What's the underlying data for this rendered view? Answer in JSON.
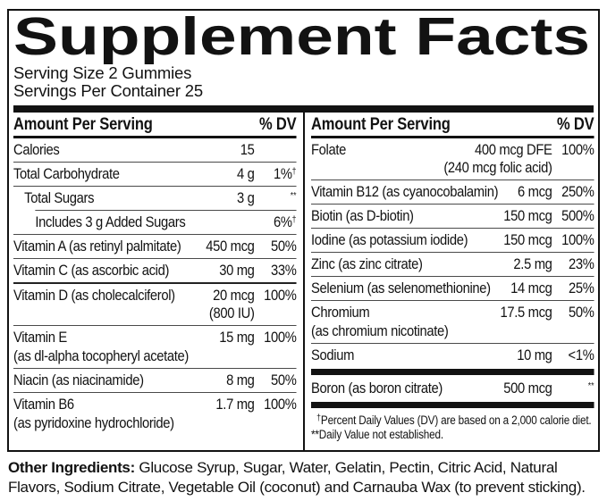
{
  "header": {
    "title": "Supplement Facts",
    "serving_size": "Serving Size 2 Gummies",
    "servings_per_container": "Servings Per Container 25"
  },
  "table": {
    "amount_header": "Amount Per Serving",
    "dv_header": "% DV",
    "columns": {
      "left": {
        "rows": [
          {
            "name": "Calories",
            "amount": "15",
            "dv": "",
            "sep": "none"
          },
          {
            "name": "Total Carbohydrate",
            "amount": "4 g",
            "dv": "1%†"
          },
          {
            "name": "Total Sugars",
            "amount": "3 g",
            "dv": "**",
            "indent": 1
          },
          {
            "name": "Includes 3 g Added Sugars",
            "amount": "",
            "dv": "6%†",
            "indent": 2,
            "sep": "indent"
          },
          {
            "name": "Vitamin A (as retinyl palmitate)",
            "amount": "450 mcg",
            "dv": "50%"
          },
          {
            "name": "Vitamin C (as ascorbic acid)",
            "amount": "30 mg",
            "dv": "33%"
          },
          {
            "name": "Vitamin D (as cholecalciferol)",
            "amount": "20 mcg",
            "amount2": "(800 IU)",
            "dv": "100%",
            "sep": "medium"
          },
          {
            "name": "Vitamin E",
            "sub": "(as dl-alpha tocopheryl acetate)",
            "amount": "15 mg",
            "dv": "100%"
          },
          {
            "name": "Niacin (as niacinamide)",
            "amount": "8 mg",
            "dv": "50%"
          },
          {
            "name": "Vitamin B6",
            "sub": "(as pyridoxine hydrochloride)",
            "amount": "1.7 mg",
            "dv": "100%"
          }
        ]
      },
      "right": {
        "rows": [
          {
            "name": "Folate",
            "amount": "400 mcg DFE",
            "amount2": "(240 mcg folic acid)",
            "dv": "100%",
            "sep": "none"
          },
          {
            "name": "Vitamin B12 (as cyanocobalamin)",
            "amount": "6 mcg",
            "dv": "250%"
          },
          {
            "name": "Biotin (as D-biotin)",
            "amount": "150 mcg",
            "dv": "500%"
          },
          {
            "name": "Iodine (as potassium iodide)",
            "amount": "150 mcg",
            "dv": "100%"
          },
          {
            "name": "Zinc (as zinc citrate)",
            "amount": "2.5 mg",
            "dv": "23%"
          },
          {
            "name": "Selenium (as selenomethionine)",
            "amount": "14 mcg",
            "dv": "25%"
          },
          {
            "name": "Chromium",
            "sub": "(as chromium nicotinate)",
            "amount": "17.5 mcg",
            "dv": "50%"
          },
          {
            "name": "Sodium",
            "amount": "10 mg",
            "dv": "<1%"
          },
          {
            "name": "Boron (as boron citrate)",
            "amount": "500 mcg",
            "dv": "**",
            "bar_above": true,
            "bar_below": true,
            "sep": "none"
          }
        ],
        "footnotes": [
          "†Percent Daily Values (DV) are based on a 2,000 calorie diet.",
          "**Daily Value not established."
        ]
      }
    }
  },
  "other_ingredients": {
    "label": "Other Ingredients:",
    "text": "Glucose Syrup, Sugar, Water, Gelatin, Pectin, Citric Acid, Natural Flavors, Sodium Citrate, Vegetable Oil (coconut) and Carnauba Wax (to prevent sticking)."
  },
  "colors": {
    "ink": "#121212",
    "background": "#ffffff",
    "hairline": "#4a4a4a"
  }
}
